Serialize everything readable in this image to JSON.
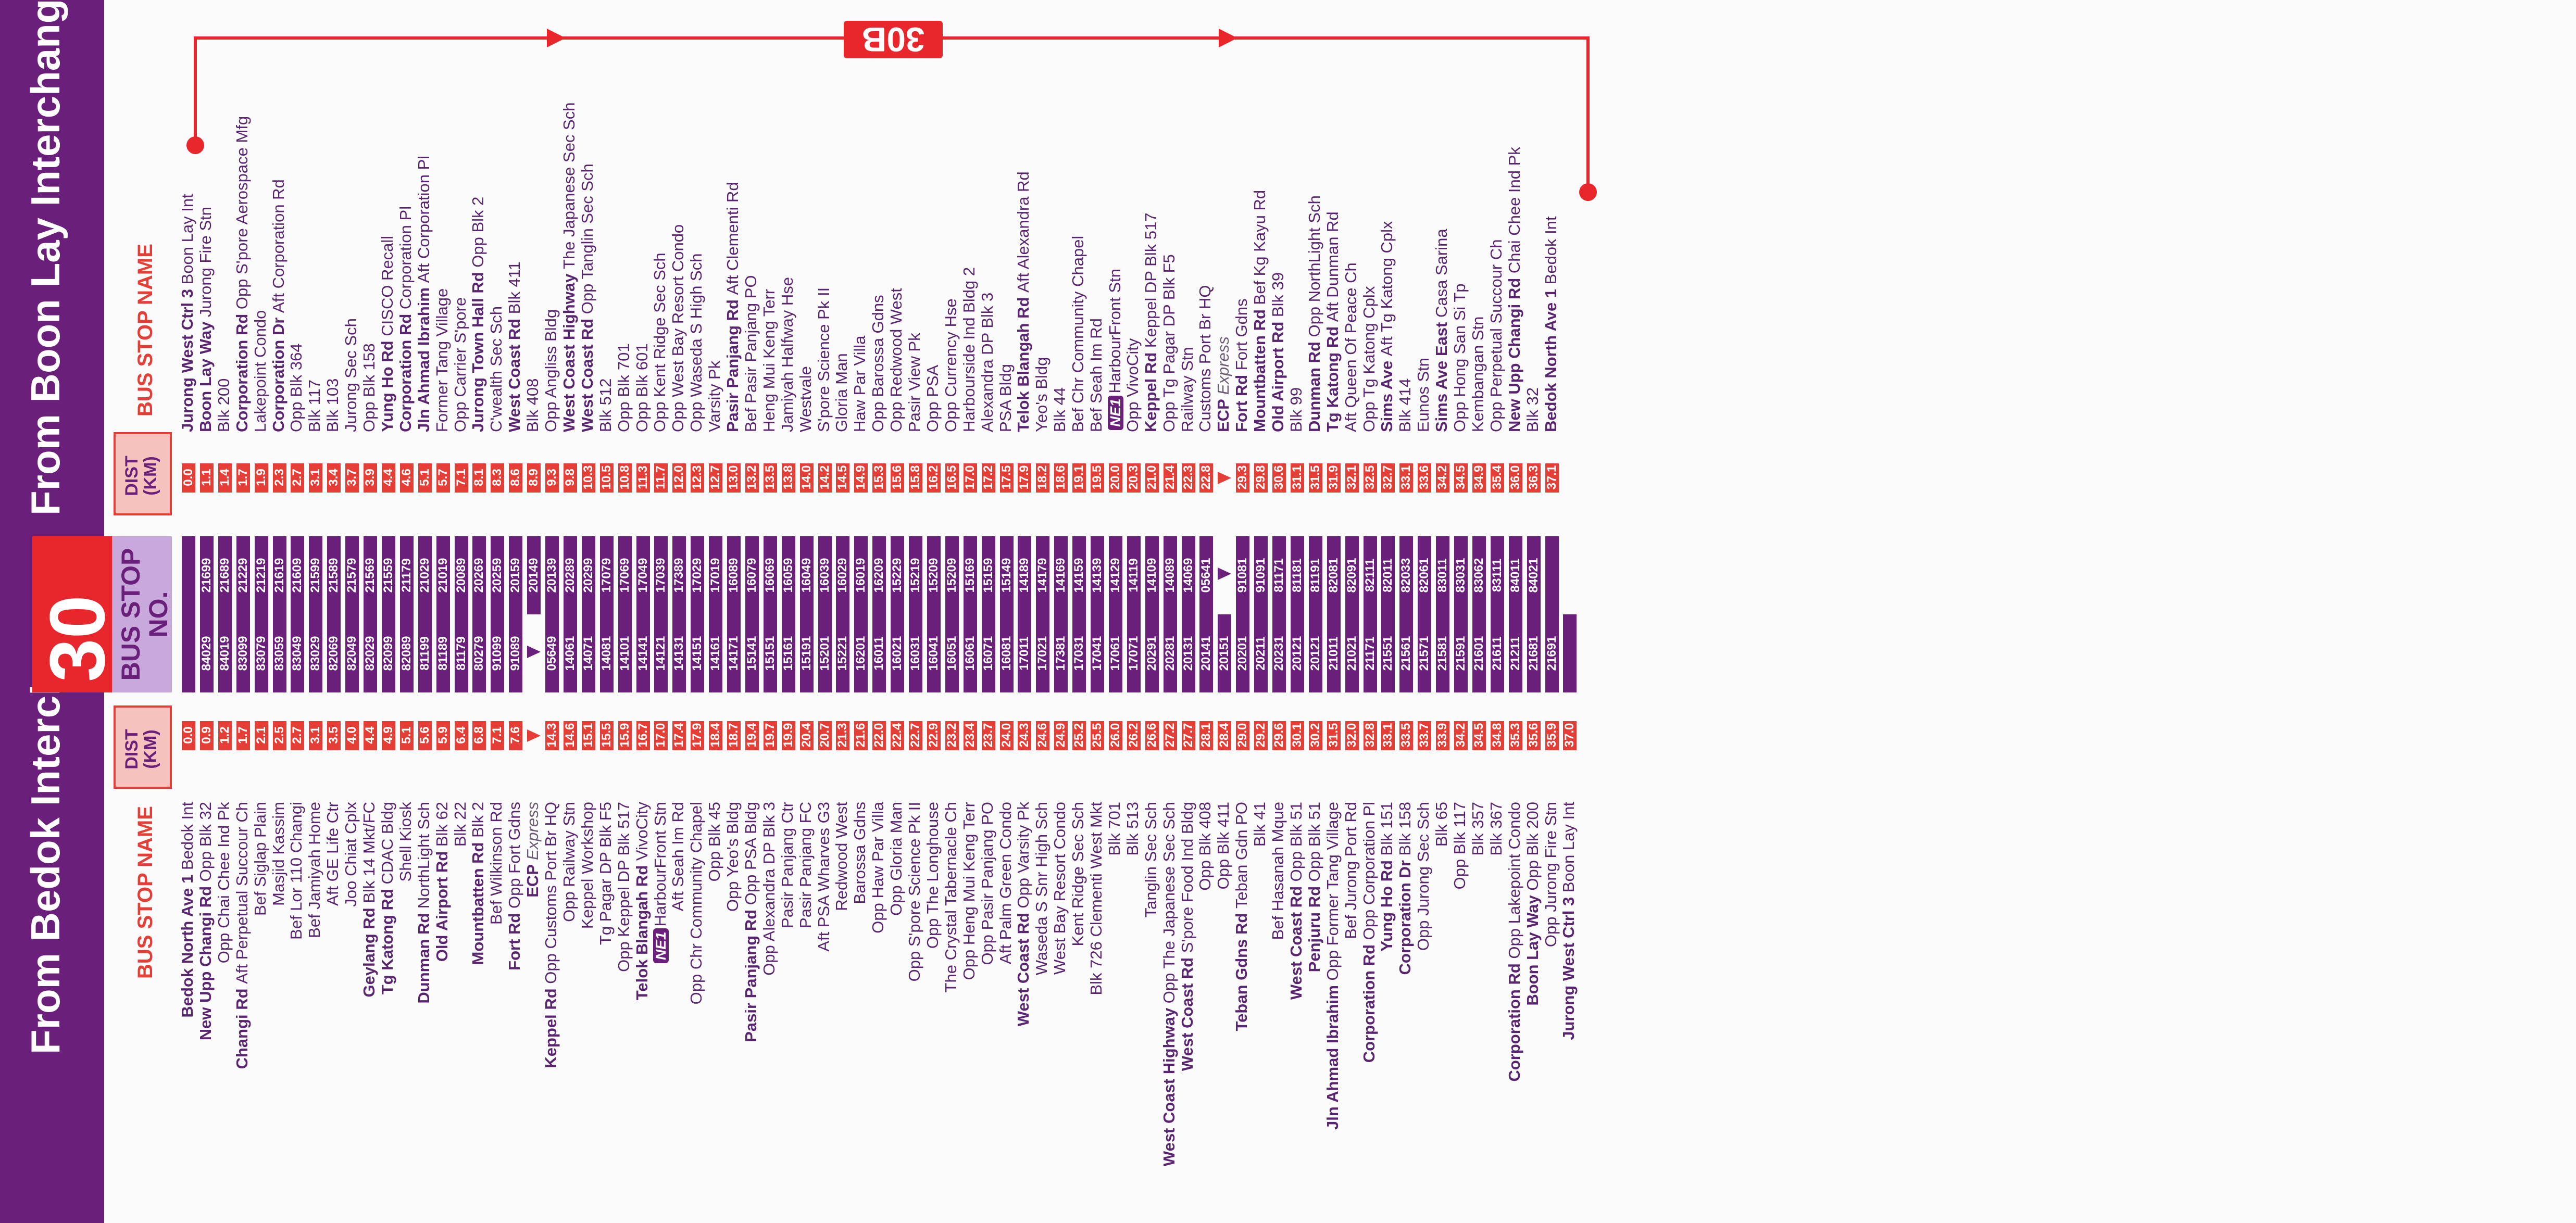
{
  "route": "30",
  "loop_service": "30B",
  "headers": {
    "from_bedok": "From Bedok Interchange",
    "from_boon_lay": "From Boon Lay Interchange",
    "bus_stop_name": "BUS STOP NAME",
    "dist_km": "DIST (KM)",
    "bus_stop_no": "BUS STOP NO."
  },
  "colors": {
    "purple": "#6a1f7a",
    "red": "#e53e36",
    "lavender": "#c9a9dc",
    "pink": "#f6c2bd"
  },
  "bedok_stops": [
    {
      "road": "Bedok North Ave 1",
      "name": "Bedok Int",
      "dist": "0.0",
      "no": ""
    },
    {
      "road": "New Upp Changi Rd",
      "name": "Opp Blk 32",
      "dist": "0.9",
      "no": "84029"
    },
    {
      "road": "",
      "name": "Opp Chai Chee Ind Pk",
      "dist": "1.2",
      "no": "84019"
    },
    {
      "road": "Changi Rd",
      "name": "Aft Perpetual Succour Ch",
      "dist": "1.7",
      "no": "83099"
    },
    {
      "road": "",
      "name": "Bef Siglap Plain",
      "dist": "2.1",
      "no": "83079"
    },
    {
      "road": "",
      "name": "Masjid Kassim",
      "dist": "2.5",
      "no": "83059"
    },
    {
      "road": "",
      "name": "Bef Lor 110 Changi",
      "dist": "2.7",
      "no": "83049"
    },
    {
      "road": "",
      "name": "Bef Jamiyah Home",
      "dist": "3.1",
      "no": "83029"
    },
    {
      "road": "",
      "name": "Aft GE Life Ctr",
      "dist": "3.5",
      "no": "82069"
    },
    {
      "road": "",
      "name": "Joo Chiat Cplx",
      "dist": "4.0",
      "no": "82049"
    },
    {
      "road": "Geylang Rd",
      "name": "Blk 14 Mkt/FC",
      "dist": "4.4",
      "no": "82029"
    },
    {
      "road": "Tg Katong Rd",
      "name": "CDAC Bldg",
      "dist": "4.9",
      "no": "82099"
    },
    {
      "road": "",
      "name": "Shell Kiosk",
      "dist": "5.1",
      "no": "82089"
    },
    {
      "road": "Dunman Rd",
      "name": "NorthLight Sch",
      "dist": "5.6",
      "no": "81199"
    },
    {
      "road": "Old Airport Rd",
      "name": "Blk 62",
      "dist": "5.9",
      "no": "81189"
    },
    {
      "road": "",
      "name": "Blk 22",
      "dist": "6.4",
      "no": "81179"
    },
    {
      "road": "Mountbatten Rd",
      "name": "Blk 2",
      "dist": "6.8",
      "no": "80279"
    },
    {
      "road": "",
      "name": "Bef Wilkinson Rd",
      "dist": "7.1",
      "no": "91099"
    },
    {
      "road": "Fort Rd",
      "name": "Opp Fort Gdns",
      "dist": "7.6",
      "no": "91089"
    },
    {
      "road": "ECP",
      "name": "Express",
      "dist": "",
      "no": ""
    },
    {
      "road": "Keppel Rd",
      "name": "Opp Customs Port Br HQ",
      "dist": "14.3",
      "no": "05649"
    },
    {
      "road": "",
      "name": "Opp Railway Stn",
      "dist": "14.6",
      "no": "14061"
    },
    {
      "road": "",
      "name": "Keppel Workshop",
      "dist": "15.1",
      "no": "14071"
    },
    {
      "road": "",
      "name": "Tg Pagar DP Blk F5",
      "dist": "15.5",
      "no": "14081"
    },
    {
      "road": "",
      "name": "Opp Keppel DP Blk 517",
      "dist": "15.9",
      "no": "14101"
    },
    {
      "road": "Telok Blangah Rd",
      "name": "VivoCity",
      "dist": "16.7",
      "no": "14141"
    },
    {
      "road": "NE1",
      "name": "HarbourFront Stn",
      "dist": "17.0",
      "no": "14121"
    },
    {
      "road": "",
      "name": "Aft Seah Im Rd",
      "dist": "17.4",
      "no": "14131"
    },
    {
      "road": "",
      "name": "Opp Chr Community Chapel",
      "dist": "17.9",
      "no": "14151"
    },
    {
      "road": "",
      "name": "Opp Blk 45",
      "dist": "18.4",
      "no": "14161"
    },
    {
      "road": "",
      "name": "Opp Yeo's Bldg",
      "dist": "18.7",
      "no": "14171"
    },
    {
      "road": "Pasir Panjang Rd",
      "name": "Opp PSA Bldg",
      "dist": "19.4",
      "no": "15141"
    },
    {
      "road": "",
      "name": "Opp Alexandra DP Blk 3",
      "dist": "19.7",
      "no": "15151"
    },
    {
      "road": "",
      "name": "Pasir Panjang Ctr",
      "dist": "19.9",
      "no": "15161"
    },
    {
      "road": "",
      "name": "Pasir Panjang FC",
      "dist": "20.4",
      "no": "15191"
    },
    {
      "road": "",
      "name": "Aft PSA Wharves G3",
      "dist": "20.7",
      "no": "15201"
    },
    {
      "road": "",
      "name": "Redwood West",
      "dist": "21.3",
      "no": "15221"
    },
    {
      "road": "",
      "name": "Barossa Gdns",
      "dist": "21.6",
      "no": "16201"
    },
    {
      "road": "",
      "name": "Opp Haw Par Villa",
      "dist": "22.0",
      "no": "16011"
    },
    {
      "road": "",
      "name": "Opp Gloria Man",
      "dist": "22.4",
      "no": "16021"
    },
    {
      "road": "",
      "name": "Opp S'pore Science Pk II",
      "dist": "22.7",
      "no": "16031"
    },
    {
      "road": "",
      "name": "Opp The Longhouse",
      "dist": "22.9",
      "no": "16041"
    },
    {
      "road": "",
      "name": "The Crystal Tabernacle Ch",
      "dist": "23.2",
      "no": "16051"
    },
    {
      "road": "",
      "name": "Opp Heng Mui Keng Terr",
      "dist": "23.4",
      "no": "16061"
    },
    {
      "road": "",
      "name": "Opp Pasir Panjang PO",
      "dist": "23.7",
      "no": "16071"
    },
    {
      "road": "",
      "name": "Aft Palm Green Condo",
      "dist": "24.0",
      "no": "16081"
    },
    {
      "road": "West Coast Rd",
      "name": "Opp Varsity Pk",
      "dist": "24.3",
      "no": "17011"
    },
    {
      "road": "",
      "name": "Waseda S Snr High Sch",
      "dist": "24.6",
      "no": "17021"
    },
    {
      "road": "",
      "name": "West Bay Resort Condo",
      "dist": "24.9",
      "no": "17381"
    },
    {
      "road": "",
      "name": "Kent Ridge Sec Sch",
      "dist": "25.2",
      "no": "17031"
    },
    {
      "road": "",
      "name": "Blk 726 Clementi West Mkt",
      "dist": "25.5",
      "no": "17041"
    },
    {
      "road": "",
      "name": "Blk 701",
      "dist": "26.0",
      "no": "17061"
    },
    {
      "road": "",
      "name": "Blk 513",
      "dist": "26.2",
      "no": "17071"
    },
    {
      "road": "",
      "name": "Tanglin Sec Sch",
      "dist": "26.6",
      "no": "20291"
    },
    {
      "road": "West Coast Highway",
      "name": "Opp The Japanese Sec Sch",
      "dist": "27.2",
      "no": "20281"
    },
    {
      "road": "West Coast Rd",
      "name": "S'pore Food Ind Bldg",
      "dist": "27.7",
      "no": "20131"
    },
    {
      "road": "",
      "name": "Opp Blk 408",
      "dist": "28.1",
      "no": "20141"
    },
    {
      "road": "",
      "name": "Opp Blk 411",
      "dist": "28.4",
      "no": "20151"
    },
    {
      "road": "Teban Gdns Rd",
      "name": "Teban Gdn PO",
      "dist": "29.0",
      "no": "20201"
    },
    {
      "road": "",
      "name": "Blk 41",
      "dist": "29.2",
      "no": "20211"
    },
    {
      "road": "",
      "name": "Bef Hasanah Mque",
      "dist": "29.6",
      "no": "20231"
    },
    {
      "road": "West Coast Rd",
      "name": "Opp Blk 51",
      "dist": "30.1",
      "no": "20121"
    },
    {
      "road": "Penjuru Rd",
      "name": "Opp Blk 51",
      "dist": "30.2",
      "no": "20121"
    },
    {
      "road": "Jln Ahmad Ibrahim",
      "name": "Opp Former Tang Village",
      "dist": "31.5",
      "no": "21011"
    },
    {
      "road": "",
      "name": "Bef Jurong Port Rd",
      "dist": "32.0",
      "no": "21021"
    },
    {
      "road": "Corporation Rd",
      "name": "Opp Corporation Pl",
      "dist": "32.8",
      "no": "21171"
    },
    {
      "road": "Yung Ho Rd",
      "name": "Blk 151",
      "dist": "33.1",
      "no": "21551"
    },
    {
      "road": "Corporation Dr",
      "name": "Blk 158",
      "dist": "33.5",
      "no": "21561"
    },
    {
      "road": "",
      "name": "Opp Jurong Sec Sch",
      "dist": "33.7",
      "no": "21571"
    },
    {
      "road": "",
      "name": "Blk 65",
      "dist": "33.9",
      "no": "21581"
    },
    {
      "road": "",
      "name": "Opp Blk 117",
      "dist": "34.2",
      "no": "21591"
    },
    {
      "road": "",
      "name": "Blk 357",
      "dist": "34.5",
      "no": "21601"
    },
    {
      "road": "",
      "name": "Blk 367",
      "dist": "34.8",
      "no": "21611"
    },
    {
      "road": "Corporation Rd",
      "name": "Opp Lakepoint Condo",
      "dist": "35.3",
      "no": "21211"
    },
    {
      "road": "Boon Lay Way",
      "name": "Opp Blk 200",
      "dist": "35.6",
      "no": "21681"
    },
    {
      "road": "",
      "name": "Opp Jurong Fire Stn",
      "dist": "35.9",
      "no": "21691"
    },
    {
      "road": "Jurong West Ctrl 3",
      "name": "Boon Lay Int",
      "dist": "37.0",
      "no": ""
    }
  ],
  "boonlay_stops": [
    {
      "road": "Jurong West Ctrl 3",
      "name": "Boon Lay Int",
      "dist": "0.0",
      "no": ""
    },
    {
      "road": "Boon Lay Way",
      "name": "Jurong Fire Stn",
      "dist": "1.1",
      "no": "21699"
    },
    {
      "road": "",
      "name": "Blk 200",
      "dist": "1.4",
      "no": "21689"
    },
    {
      "road": "Corporation Rd",
      "name": "Opp S'pore Aerospace Mfg",
      "dist": "1.7",
      "no": "21229"
    },
    {
      "road": "",
      "name": "Lakepoint Condo",
      "dist": "1.9",
      "no": "21219"
    },
    {
      "road": "Corporation Dr",
      "name": "Aft Corporation Rd",
      "dist": "2.3",
      "no": "21619"
    },
    {
      "road": "",
      "name": "Opp Blk 364",
      "dist": "2.7",
      "no": "21609"
    },
    {
      "road": "",
      "name": "Blk 117",
      "dist": "3.1",
      "no": "21599"
    },
    {
      "road": "",
      "name": "Blk 103",
      "dist": "3.4",
      "no": "21589"
    },
    {
      "road": "",
      "name": "Jurong Sec Sch",
      "dist": "3.7",
      "no": "21579"
    },
    {
      "road": "",
      "name": "Opp Blk 158",
      "dist": "3.9",
      "no": "21569"
    },
    {
      "road": "Yung Ho Rd",
      "name": "CISCO Recall",
      "dist": "4.4",
      "no": "21559"
    },
    {
      "road": "Corporation Rd",
      "name": "Corporation Pl",
      "dist": "4.6",
      "no": "21179"
    },
    {
      "road": "Jln Ahmad Ibrahim",
      "name": "Aft Corporation Pl",
      "dist": "5.1",
      "no": "21029"
    },
    {
      "road": "",
      "name": "Former Tang Village",
      "dist": "5.7",
      "no": "21019"
    },
    {
      "road": "",
      "name": "Opp Carrier S'pore",
      "dist": "7.1",
      "no": "20089"
    },
    {
      "road": "Jurong Town Hall Rd",
      "name": "Opp Blk 2",
      "dist": "8.1",
      "no": "20269"
    },
    {
      "road": "",
      "name": "C'wealth Sec Sch",
      "dist": "8.3",
      "no": "20259"
    },
    {
      "road": "West Coast Rd",
      "name": "Blk 411",
      "dist": "8.6",
      "no": "20159"
    },
    {
      "road": "",
      "name": "Blk 408",
      "dist": "8.9",
      "no": "20149"
    },
    {
      "road": "",
      "name": "Opp Angliss Bldg",
      "dist": "9.3",
      "no": "20139"
    },
    {
      "road": "West Coast Highway",
      "name": "The Japanese Sec Sch",
      "dist": "9.8",
      "no": "20289"
    },
    {
      "road": "West Coast Rd",
      "name": "Opp Tanglin Sec Sch",
      "dist": "10.3",
      "no": "20299"
    },
    {
      "road": "",
      "name": "Blk 512",
      "dist": "10.5",
      "no": "17079"
    },
    {
      "road": "",
      "name": "Opp Blk 701",
      "dist": "10.8",
      "no": "17069"
    },
    {
      "road": "",
      "name": "Opp Blk 601",
      "dist": "11.3",
      "no": "17049"
    },
    {
      "road": "",
      "name": "Opp Kent Ridge Sec Sch",
      "dist": "11.7",
      "no": "17039"
    },
    {
      "road": "",
      "name": "Opp West Bay Resort Condo",
      "dist": "12.0",
      "no": "17389"
    },
    {
      "road": "",
      "name": "Opp Waseda S High Sch",
      "dist": "12.3",
      "no": "17029"
    },
    {
      "road": "",
      "name": "Varsity Pk",
      "dist": "12.7",
      "no": "17019"
    },
    {
      "road": "Pasir Panjang Rd",
      "name": "Aft Clementi Rd",
      "dist": "13.0",
      "no": "16089"
    },
    {
      "road": "",
      "name": "Bef Pasir Panjang PO",
      "dist": "13.2",
      "no": "16079"
    },
    {
      "road": "",
      "name": "Heng Mui Keng Terr",
      "dist": "13.5",
      "no": "16069"
    },
    {
      "road": "",
      "name": "Jamiyah Halfway Hse",
      "dist": "13.8",
      "no": "16059"
    },
    {
      "road": "",
      "name": "Westvale",
      "dist": "14.0",
      "no": "16049"
    },
    {
      "road": "",
      "name": "S'pore Science Pk II",
      "dist": "14.2",
      "no": "16039"
    },
    {
      "road": "",
      "name": "Gloria Man",
      "dist": "14.5",
      "no": "16029"
    },
    {
      "road": "",
      "name": "Haw Par Villa",
      "dist": "14.9",
      "no": "16019"
    },
    {
      "road": "",
      "name": "Opp Barossa Gdns",
      "dist": "15.3",
      "no": "16209"
    },
    {
      "road": "",
      "name": "Opp Redwood West",
      "dist": "15.6",
      "no": "15229"
    },
    {
      "road": "",
      "name": "Pasir View Pk",
      "dist": "15.8",
      "no": "15219"
    },
    {
      "road": "",
      "name": "Opp PSA",
      "dist": "16.2",
      "no": "15209"
    },
    {
      "road": "",
      "name": "Opp Currency Hse",
      "dist": "16.5",
      "no": "15209"
    },
    {
      "road": "",
      "name": "Harbourside Ind Bldg 2",
      "dist": "17.0",
      "no": "15169"
    },
    {
      "road": "",
      "name": "Alexandra DP Blk 3",
      "dist": "17.2",
      "no": "15159"
    },
    {
      "road": "",
      "name": "PSA Bldg",
      "dist": "17.5",
      "no": "15149"
    },
    {
      "road": "Telok Blangah Rd",
      "name": "Aft Alexandra Rd",
      "dist": "17.9",
      "no": "14189"
    },
    {
      "road": "",
      "name": "Yeo's Bldg",
      "dist": "18.2",
      "no": "14179"
    },
    {
      "road": "",
      "name": "Blk 44",
      "dist": "18.6",
      "no": "14169"
    },
    {
      "road": "",
      "name": "Bef Chr Community Chapel",
      "dist": "19.1",
      "no": "14159"
    },
    {
      "road": "",
      "name": "Bef Seah Im Rd",
      "dist": "19.5",
      "no": "14139"
    },
    {
      "road": "NE1",
      "name": "HarbourFront Stn",
      "dist": "20.0",
      "no": "14129"
    },
    {
      "road": "",
      "name": "Opp VivoCity",
      "dist": "20.3",
      "no": "14119"
    },
    {
      "road": "Keppel Rd",
      "name": "Keppel DP Blk 517",
      "dist": "21.0",
      "no": "14109"
    },
    {
      "road": "",
      "name": "Opp Tg Pagar DP Blk F5",
      "dist": "21.4",
      "no": "14089"
    },
    {
      "road": "",
      "name": "Railway Stn",
      "dist": "22.3",
      "no": "14069"
    },
    {
      "road": "",
      "name": "Customs Port Br HQ",
      "dist": "22.8",
      "no": "05641"
    },
    {
      "road": "ECP",
      "name": "Express",
      "dist": "",
      "no": ""
    },
    {
      "road": "Fort Rd",
      "name": "Fort Gdns",
      "dist": "29.3",
      "no": "91081"
    },
    {
      "road": "Mountbatten Rd",
      "name": "Bef Kg Kayu Rd",
      "dist": "29.8",
      "no": "91091"
    },
    {
      "road": "Old Airport Rd",
      "name": "Blk 39",
      "dist": "30.6",
      "no": "81171"
    },
    {
      "road": "",
      "name": "Blk 99",
      "dist": "31.1",
      "no": "81181"
    },
    {
      "road": "Dunman Rd",
      "name": "Opp NorthLight Sch",
      "dist": "31.5",
      "no": "81191"
    },
    {
      "road": "Tg Katong Rd",
      "name": "Aft Dunman Rd",
      "dist": "31.9",
      "no": "82081"
    },
    {
      "road": "",
      "name": "Aft Queen Of Peace Ch",
      "dist": "32.1",
      "no": "82091"
    },
    {
      "road": "",
      "name": "Opp Tg Katong Cplx",
      "dist": "32.5",
      "no": "82111"
    },
    {
      "road": "Sims Ave",
      "name": "Aft Tg Katong Cplx",
      "dist": "32.7",
      "no": "82011"
    },
    {
      "road": "",
      "name": "Blk 414",
      "dist": "33.1",
      "no": "82033"
    },
    {
      "road": "",
      "name": "Eunos Stn",
      "dist": "33.6",
      "no": "82061"
    },
    {
      "road": "Sims Ave East",
      "name": "Casa Sarina",
      "dist": "34.2",
      "no": "83011"
    },
    {
      "road": "",
      "name": "Opp Hong San Si Tp",
      "dist": "34.5",
      "no": "83031"
    },
    {
      "road": "",
      "name": "Kembangan Stn",
      "dist": "34.9",
      "no": "83062"
    },
    {
      "road": "",
      "name": "Opp Perpetual Succour Ch",
      "dist": "35.4",
      "no": "83111"
    },
    {
      "road": "New Upp Changi Rd",
      "name": "Chai Chee Ind Pk",
      "dist": "36.0",
      "no": "84011"
    },
    {
      "road": "",
      "name": "Blk 32",
      "dist": "36.3",
      "no": "84021"
    },
    {
      "road": "Bedok North Ave 1",
      "name": "Bedok Int",
      "dist": "37.1",
      "no": ""
    }
  ]
}
